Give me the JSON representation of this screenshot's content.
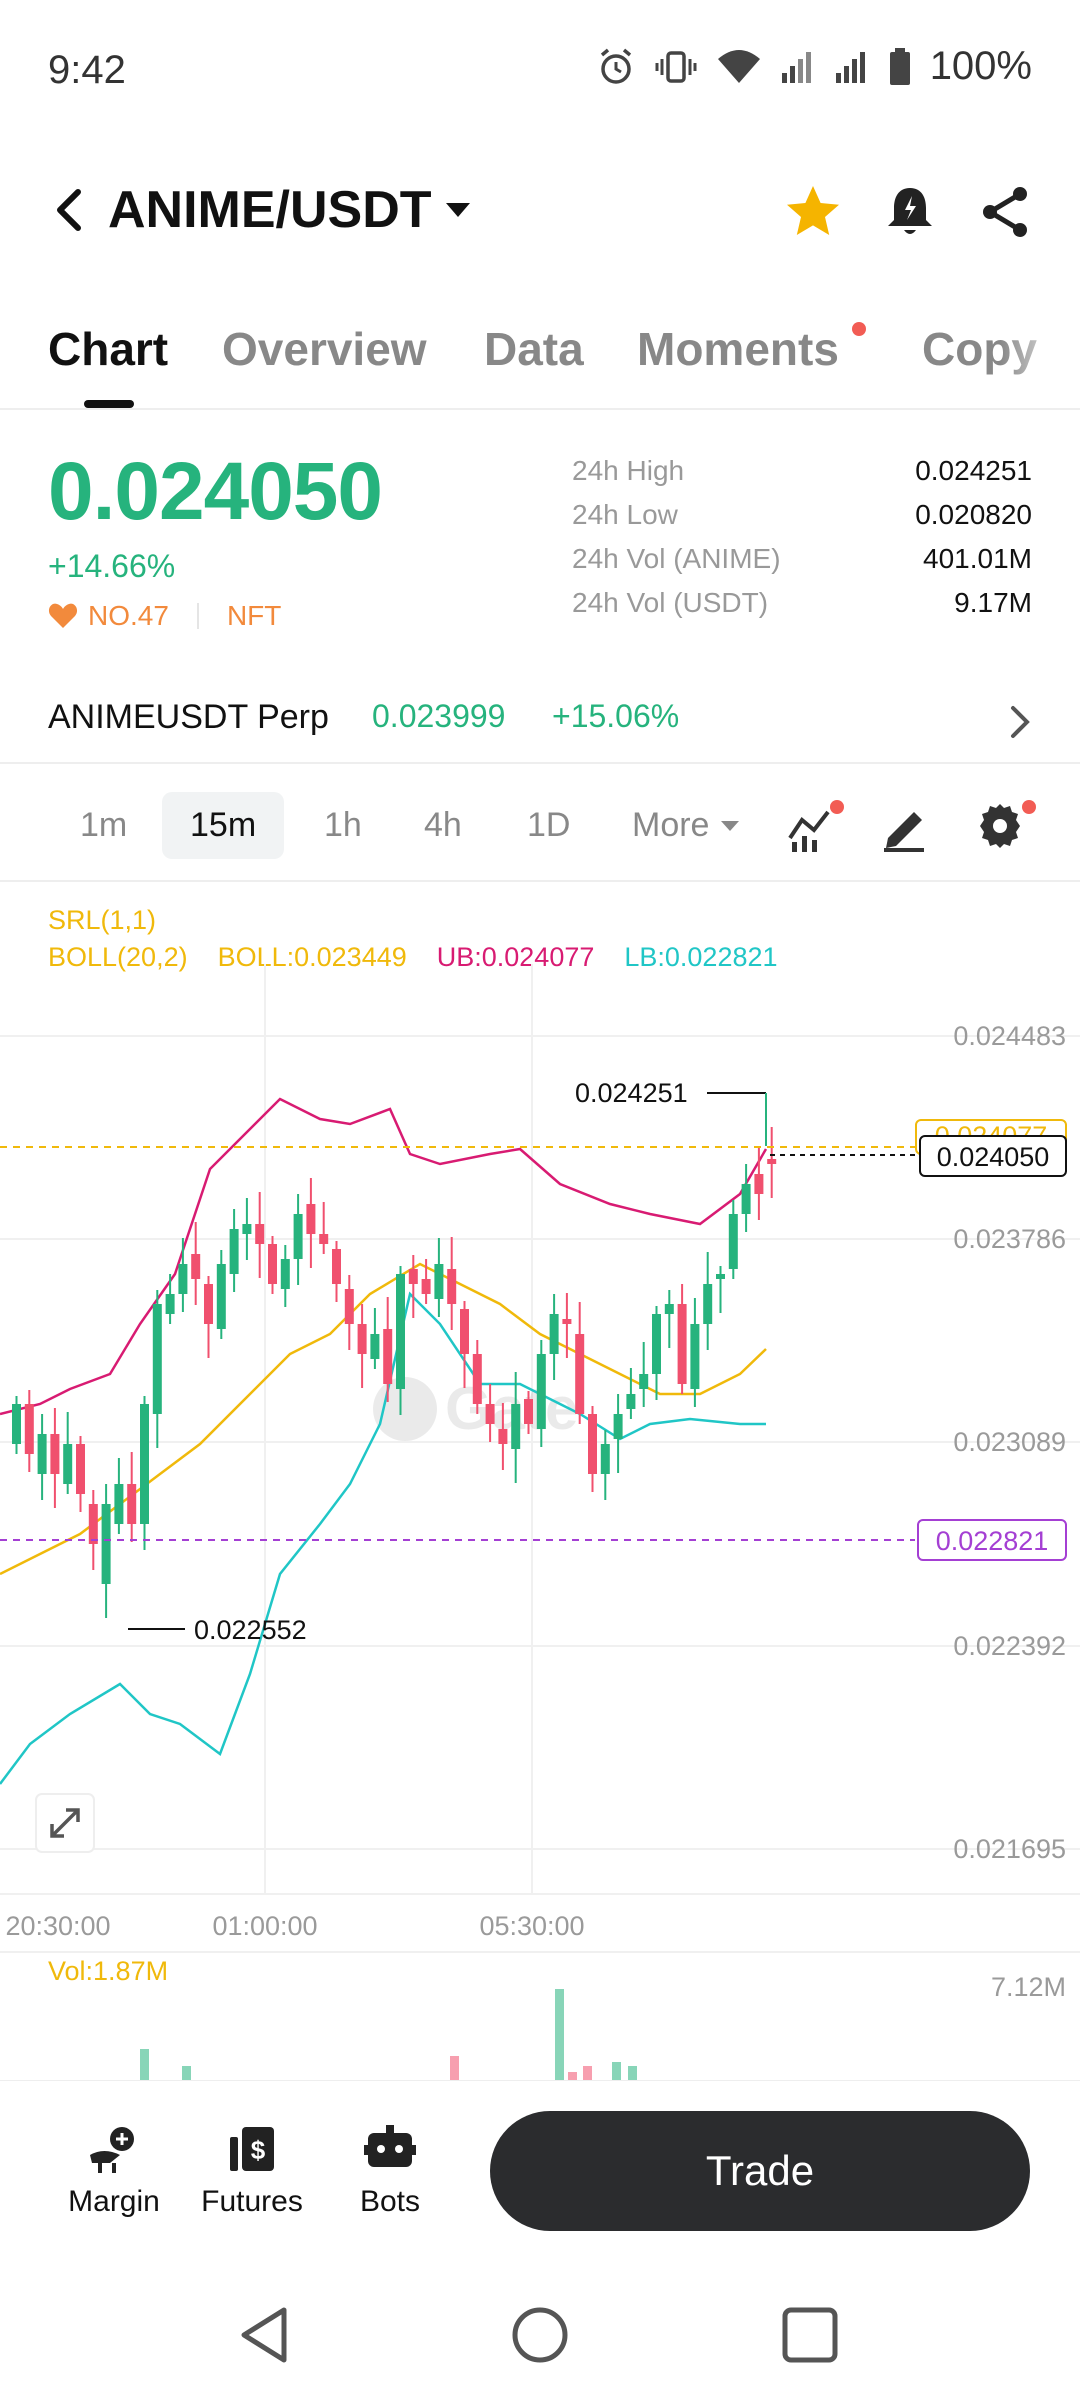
{
  "status_bar": {
    "time": "9:42",
    "battery": "100%"
  },
  "header": {
    "pair": "ANIME/USDT"
  },
  "tabs": [
    {
      "label": "Chart",
      "active": true
    },
    {
      "label": "Overview",
      "active": false
    },
    {
      "label": "Data",
      "active": false
    },
    {
      "label": "Moments",
      "active": false,
      "dot": true
    },
    {
      "label": "Copy",
      "active": false
    }
  ],
  "price": {
    "last": "0.024050",
    "change": "+14.66%",
    "rank": "NO.47",
    "tag": "NFT"
  },
  "stats": [
    {
      "label": "24h High",
      "value": "0.024251"
    },
    {
      "label": "24h Low",
      "value": "0.020820"
    },
    {
      "label": "24h Vol (ANIME)",
      "value": "401.01M"
    },
    {
      "label": "24h Vol (USDT)",
      "value": "9.17M"
    }
  ],
  "perp": {
    "name": "ANIMEUSDT Perp",
    "price": "0.023999",
    "change": "+15.06%"
  },
  "intervals": [
    "1m",
    "15m",
    "1h",
    "4h",
    "1D",
    "More"
  ],
  "active_interval": "15m",
  "indicators": {
    "srl": "SRL(1,1)",
    "boll_params": "BOLL(20,2)",
    "boll": "BOLL:0.023449",
    "ub": "UB:0.024077",
    "lb": "LB:0.022821"
  },
  "colors": {
    "up": "#26b37d",
    "down": "#f0506e",
    "boll_mid": "#f0b90b",
    "upper_band": "#d81b72",
    "lower_band": "#20c6c6",
    "lb_line": "#a43fd3",
    "accent_orange": "#f28a3c"
  },
  "chart": {
    "y_ticks": [
      "0.024483",
      "0.023786",
      "0.023089",
      "0.022392",
      "0.021695"
    ],
    "x_ticks": [
      "20:30:00",
      "01:00:00",
      "05:30:00"
    ],
    "high_label": "0.024251",
    "low_label": "0.022552",
    "last_price_tag": "0.024050",
    "ub_tag": "0.024077",
    "lb_tag": "0.022821",
    "vol_label": "Vol:1.87M",
    "vol_max": "7.12M"
  },
  "bottom_nav": {
    "margin": "Margin",
    "futures": "Futures",
    "bots": "Bots",
    "trade": "Trade"
  }
}
